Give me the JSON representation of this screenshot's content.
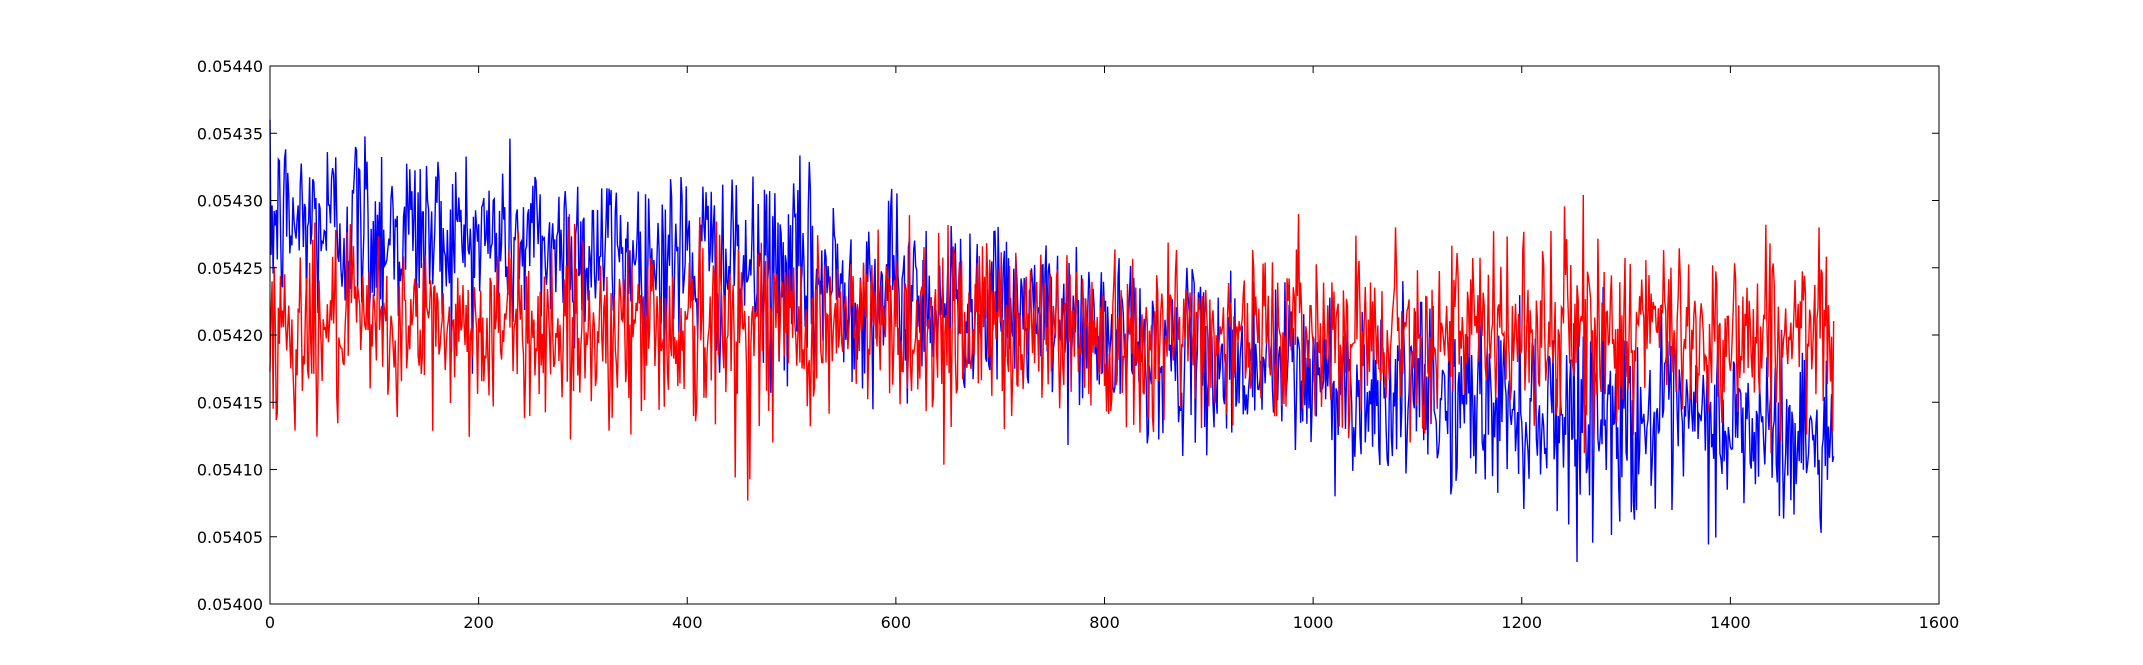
{
  "chart_data": {
    "type": "line",
    "title": "",
    "xlabel": "",
    "ylabel": "",
    "xlim": [
      0,
      1600
    ],
    "ylim": [
      0.054,
      0.0544
    ],
    "x_ticks": [
      0,
      200,
      400,
      600,
      800,
      1000,
      1200,
      1400,
      1600
    ],
    "x_tick_labels": [
      "0",
      "200",
      "400",
      "600",
      "800",
      "1000",
      "1200",
      "1400",
      "1600"
    ],
    "y_ticks": [
      0.054,
      0.05405,
      0.0541,
      0.05415,
      0.0542,
      0.05425,
      0.0543,
      0.05435,
      0.0544
    ],
    "y_tick_labels": [
      "0.05400",
      "0.05405",
      "0.05410",
      "0.05415",
      "0.05420",
      "0.05425",
      "0.05430",
      "0.05435",
      "0.05440"
    ],
    "grid": false,
    "legend": "none",
    "n_points": 1500,
    "series": [
      {
        "color": "#0000ff",
        "x": [
          0,
          50,
          100,
          150,
          200,
          250,
          300,
          350,
          400,
          450,
          500,
          550,
          600,
          650,
          700,
          750,
          800,
          850,
          900,
          950,
          1000,
          1050,
          1100,
          1150,
          1200,
          1250,
          1300,
          1350,
          1400,
          1450,
          1500
        ],
        "mean": [
          0.054285,
          0.054283,
          0.05428,
          0.054276,
          0.054272,
          0.054268,
          0.054264,
          0.05426,
          0.054256,
          0.054251,
          0.054244,
          0.054238,
          0.054232,
          0.054226,
          0.05422,
          0.054212,
          0.054198,
          0.054188,
          0.054182,
          0.054176,
          0.054168,
          0.054162,
          0.054156,
          0.05415,
          0.054146,
          0.054142,
          0.054138,
          0.054134,
          0.05413,
          0.054124,
          0.05412
        ],
        "max": [
          0.05436,
          0.05437,
          0.05438,
          0.05436,
          0.05434,
          0.05435,
          0.05434,
          0.05432,
          0.05435,
          0.05431,
          0.05434,
          0.05432,
          0.05433,
          0.05429,
          0.05428,
          0.05427,
          0.05426,
          0.05425,
          0.05425,
          0.05426,
          0.05425,
          0.05424,
          0.05424,
          0.05422,
          0.05423,
          0.05423,
          0.05424,
          0.05422,
          0.05422,
          0.05421,
          0.05421
        ],
        "min": [
          0.05418,
          0.05418,
          0.05417,
          0.05418,
          0.05417,
          0.05417,
          0.05416,
          0.05416,
          0.05415,
          0.05414,
          0.05414,
          0.05414,
          0.05414,
          0.05413,
          0.05413,
          0.05412,
          0.05407,
          0.0541,
          0.05409,
          0.05408,
          0.05408,
          0.05408,
          0.05407,
          0.05404,
          0.05406,
          0.05403,
          0.05405,
          0.05405,
          0.05404,
          0.05402,
          0.05405
        ]
      },
      {
        "color": "#ff0000",
        "x": [
          0,
          50,
          100,
          150,
          200,
          250,
          300,
          350,
          400,
          450,
          500,
          550,
          600,
          650,
          700,
          750,
          800,
          850,
          900,
          950,
          1000,
          1050,
          1100,
          1150,
          1200,
          1250,
          1300,
          1350,
          1400,
          1450,
          1500
        ],
        "mean": [
          0.054205,
          0.054205,
          0.054205,
          0.054205,
          0.054205,
          0.054206,
          0.054206,
          0.054205,
          0.054205,
          0.054204,
          0.054206,
          0.054207,
          0.054209,
          0.05421,
          0.054209,
          0.054207,
          0.054204,
          0.054202,
          0.054202,
          0.054203,
          0.054203,
          0.054203,
          0.054202,
          0.054201,
          0.054201,
          0.054202,
          0.054203,
          0.054202,
          0.054201,
          0.0542,
          0.0542
        ],
        "max": [
          0.05428,
          0.05429,
          0.05429,
          0.05429,
          0.05428,
          0.05429,
          0.05429,
          0.05428,
          0.05429,
          0.05428,
          0.05429,
          0.0543,
          0.05432,
          0.05431,
          0.0543,
          0.05429,
          0.05427,
          0.05428,
          0.05429,
          0.05429,
          0.05429,
          0.05428,
          0.05428,
          0.05428,
          0.05428,
          0.05433,
          0.05429,
          0.0543,
          0.05429,
          0.05428,
          0.05428
        ],
        "min": [
          0.05411,
          0.05412,
          0.05413,
          0.05413,
          0.05412,
          0.05412,
          0.05411,
          0.0541,
          0.0541,
          0.05406,
          0.05412,
          0.05413,
          0.05413,
          0.05408,
          0.05413,
          0.05413,
          0.05407,
          0.05412,
          0.05413,
          0.05413,
          0.05413,
          0.05412,
          0.05412,
          0.05412,
          0.05411,
          0.05411,
          0.05412,
          0.05412,
          0.05412,
          0.05411,
          0.05411
        ]
      }
    ]
  }
}
